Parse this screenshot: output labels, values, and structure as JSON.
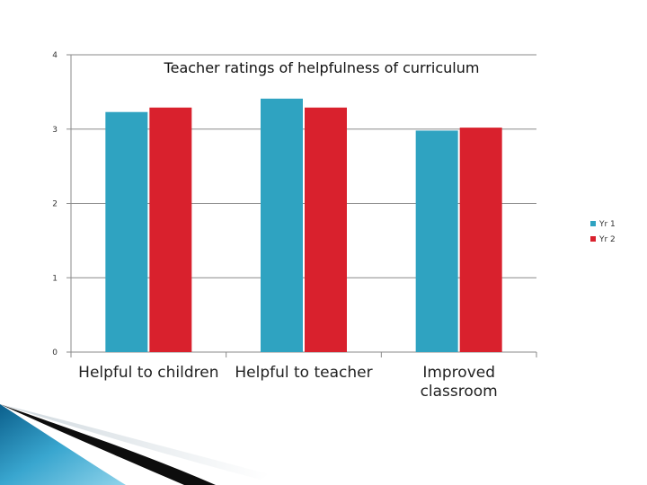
{
  "chart_data": {
    "type": "bar",
    "title": "Teacher ratings of helpfulness of curriculum",
    "categories": [
      [
        "Helpful to children"
      ],
      [
        "Helpful to teacher"
      ],
      [
        "Improved",
        "classroom"
      ]
    ],
    "series": [
      {
        "name": "Yr 1",
        "color": "#2fa3c1",
        "values": [
          3.23,
          3.41,
          2.98
        ]
      },
      {
        "name": "Yr 2",
        "color": "#d9212d",
        "values": [
          3.29,
          3.29,
          3.02
        ]
      }
    ],
    "ylim": [
      0,
      4
    ],
    "yticks": [
      0,
      1,
      2,
      3,
      4
    ],
    "grid": true,
    "legend_position": "right"
  }
}
